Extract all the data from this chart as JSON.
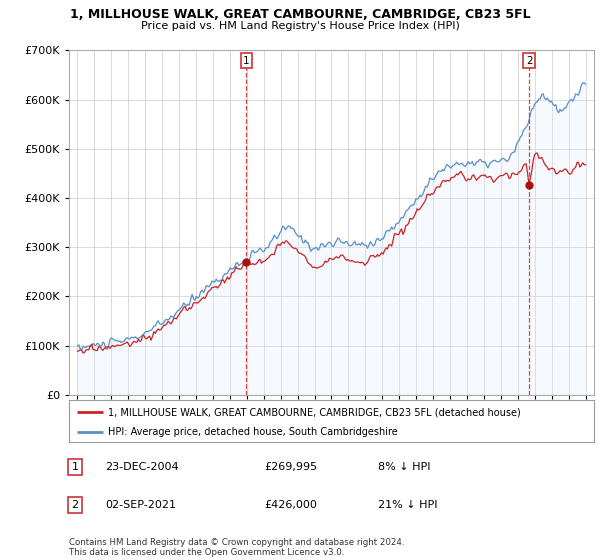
{
  "title": "1, MILLHOUSE WALK, GREAT CAMBOURNE, CAMBRIDGE, CB23 5FL",
  "subtitle": "Price paid vs. HM Land Registry's House Price Index (HPI)",
  "legend_line1": "1, MILLHOUSE WALK, GREAT CAMBOURNE, CAMBRIDGE, CB23 5FL (detached house)",
  "legend_line2": "HPI: Average price, detached house, South Cambridgeshire",
  "footnote": "Contains HM Land Registry data © Crown copyright and database right 2024.\nThis data is licensed under the Open Government Licence v3.0.",
  "table_rows": [
    {
      "num": "1",
      "date": "23-DEC-2004",
      "price": "£269,995",
      "relation": "8% ↓ HPI"
    },
    {
      "num": "2",
      "date": "02-SEP-2021",
      "price": "£426,000",
      "relation": "21% ↓ HPI"
    }
  ],
  "sale1_year": 2004.98,
  "sale1_price": 269995,
  "sale2_year": 2021.67,
  "sale2_price": 426000,
  "hpi_color": "#5b8ec4",
  "price_color": "#cc2222",
  "sale_dot_color": "#aa1111",
  "vline_color": "#cc3333",
  "background_color": "#ffffff",
  "grid_color": "#cccccc",
  "fill_color": "#ddeeff",
  "ylim": [
    0,
    700000
  ],
  "y_tick_step": 100000,
  "xlim_start": 1994.5,
  "xlim_end": 2025.5,
  "x_ticks": [
    1995,
    1996,
    1997,
    1998,
    1999,
    2000,
    2001,
    2002,
    2003,
    2004,
    2005,
    2006,
    2007,
    2008,
    2009,
    2010,
    2011,
    2012,
    2013,
    2014,
    2015,
    2016,
    2017,
    2018,
    2019,
    2020,
    2021,
    2022,
    2023,
    2024,
    2025
  ]
}
